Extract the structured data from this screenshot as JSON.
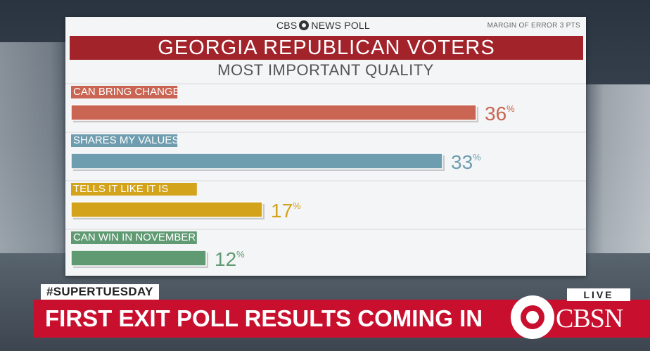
{
  "poll": {
    "brand_left": "CBS",
    "brand_right": "NEWS POLL",
    "margin": "MARGIN OF ERROR 3 PTS"
  },
  "chart_data": {
    "type": "bar",
    "orientation": "horizontal",
    "title": "GEORGIA REPUBLICAN VOTERS",
    "subtitle": "MOST IMPORTANT QUALITY",
    "categories": [
      "CAN BRING CHANGE",
      "SHARES MY VALUES",
      "TELLS IT LIKE IT IS",
      "CAN WIN IN NOVEMBER"
    ],
    "values": [
      36,
      33,
      17,
      12
    ],
    "unit": "%",
    "colors": [
      "#c96552",
      "#6f9db0",
      "#d3a31b",
      "#5f9a72"
    ],
    "xlim": [
      0,
      40
    ]
  },
  "ticker": {
    "hashtag": "#SUPERTUESDAY",
    "headline": "FIRST EXIT POLL RESULTS COMING IN",
    "live": "LIVE",
    "network": "CBSN"
  }
}
